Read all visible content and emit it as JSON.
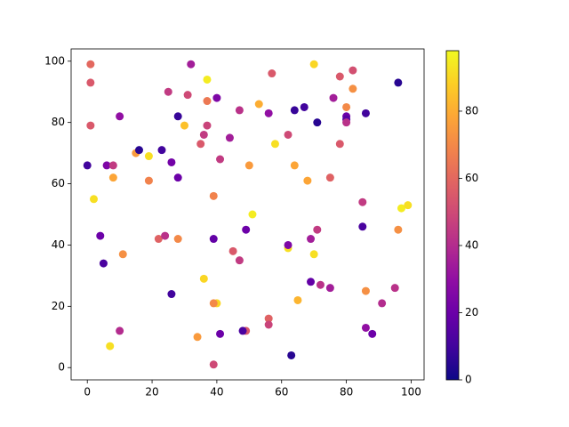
{
  "chart_data": {
    "type": "scatter",
    "x": [
      0,
      1,
      1,
      1,
      2,
      4,
      5,
      6,
      8,
      8,
      7,
      10,
      10,
      11,
      15,
      16,
      19,
      19,
      22,
      23,
      24,
      25,
      26,
      26,
      28,
      28,
      28,
      30,
      31,
      32,
      34,
      35,
      36,
      37,
      37,
      37,
      36,
      39,
      39,
      40,
      40,
      39,
      39,
      41,
      41,
      44,
      45,
      47,
      47,
      49,
      48,
      49,
      50,
      51,
      53,
      56,
      57,
      58,
      56,
      56,
      62,
      62,
      62,
      63,
      64,
      64,
      65,
      67,
      68,
      69,
      69,
      70,
      70,
      71,
      71,
      72,
      75,
      75,
      76,
      78,
      78,
      80,
      80,
      80,
      80,
      82,
      82,
      85,
      85,
      86,
      86,
      86,
      88,
      91,
      95,
      96,
      96,
      97,
      99
    ],
    "values": [
      66,
      99,
      93,
      79,
      55,
      43,
      34,
      66,
      66,
      62,
      7,
      82,
      12,
      37,
      70,
      71,
      69,
      61,
      42,
      71,
      43,
      90,
      67,
      24,
      82,
      62,
      42,
      79,
      89,
      99,
      10,
      73,
      76,
      94,
      87,
      79,
      29,
      56,
      42,
      88,
      21,
      21,
      1,
      68,
      11,
      75,
      38,
      84,
      35,
      12,
      12,
      45,
      66,
      50,
      86,
      83,
      96,
      73,
      16,
      14,
      76,
      39,
      40,
      4,
      84,
      66,
      22,
      85,
      61,
      42,
      28,
      99,
      37,
      80,
      45,
      27,
      62,
      26,
      88,
      95,
      73,
      85,
      82,
      81,
      80,
      97,
      91,
      54,
      46,
      83,
      25,
      13,
      11,
      21,
      26,
      93,
      45,
      52,
      53
    ],
    "color_values": [
      10,
      60,
      55,
      55,
      92,
      20,
      12,
      25,
      45,
      78,
      92,
      30,
      40,
      72,
      75,
      5,
      92,
      68,
      58,
      10,
      42,
      45,
      22,
      10,
      8,
      20,
      70,
      85,
      50,
      35,
      75,
      55,
      45,
      95,
      65,
      48,
      90,
      68,
      18,
      25,
      90,
      70,
      50,
      45,
      20,
      35,
      55,
      42,
      45,
      55,
      12,
      20,
      75,
      95,
      80,
      30,
      55,
      92,
      58,
      48,
      50,
      92,
      25,
      5,
      8,
      78,
      82,
      10,
      78,
      35,
      18,
      90,
      92,
      5,
      45,
      42,
      58,
      35,
      35,
      55,
      55,
      70,
      20,
      15,
      42,
      52,
      72,
      45,
      12,
      10,
      72,
      30,
      20,
      40,
      42,
      5,
      72,
      95,
      92
    ],
    "xlim": [
      -5,
      104
    ],
    "ylim": [
      -4,
      104
    ],
    "xticks": [
      0,
      20,
      40,
      60,
      80,
      100
    ],
    "yticks": [
      0,
      20,
      40,
      60,
      80,
      100
    ],
    "colormap": "plasma",
    "clim": [
      0,
      98
    ],
    "colorbar_ticks": [
      0,
      20,
      40,
      60,
      80
    ]
  }
}
